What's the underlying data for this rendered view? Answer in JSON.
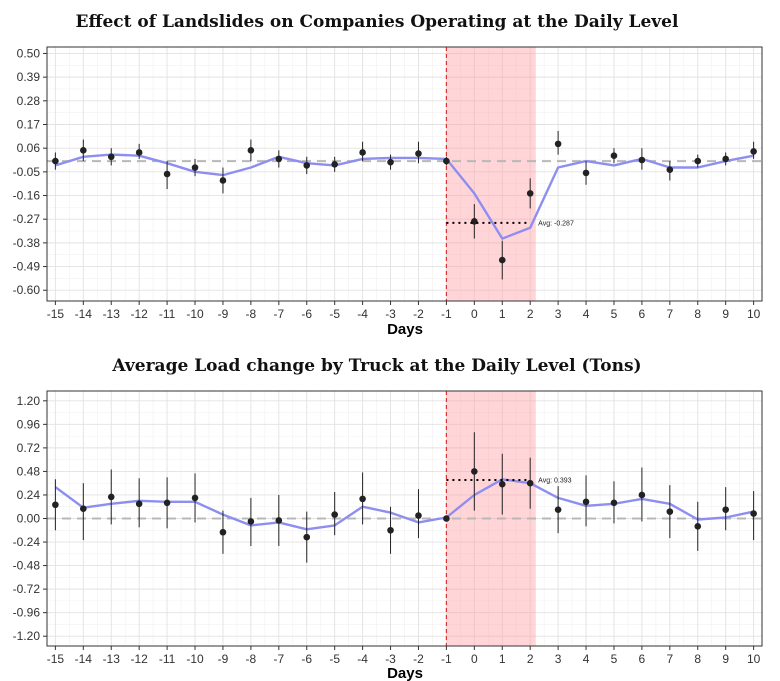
{
  "chart_data": [
    {
      "type": "line",
      "title": "Effect of Landslides on Companies Operating at the Daily Level",
      "xlabel": "Days",
      "ylabel": "",
      "x": [
        -15,
        -14,
        -13,
        -12,
        -11,
        -10,
        -9,
        -8,
        -7,
        -6,
        -5,
        -4,
        -3,
        -2,
        -1,
        0,
        1,
        2,
        3,
        4,
        5,
        6,
        7,
        8,
        9,
        10
      ],
      "xlim": [
        -15.3,
        10.3
      ],
      "ylim": [
        -0.65,
        0.53
      ],
      "yticks": [
        0.5,
        0.39,
        0.28,
        0.17,
        0.06,
        -0.05,
        -0.16,
        -0.27,
        -0.38,
        -0.49,
        -0.6
      ],
      "ytick_labels": [
        "0.50",
        "0.39",
        "0.28",
        "0.17",
        "0.06",
        "-0.05",
        "-0.16",
        "-0.27",
        "-0.38",
        "-0.49",
        "-0.60"
      ],
      "grid": true,
      "baseline": 0.0,
      "shaded_region": [
        -1,
        2.2
      ],
      "event_line_x": -1,
      "annotation": {
        "text": "Avg: -0.287",
        "x_from": -1,
        "x_to": 2,
        "y": -0.287
      },
      "series": [
        {
          "kind": "points_with_error_bars",
          "values": [
            0.0,
            0.05,
            0.02,
            0.04,
            -0.06,
            -0.03,
            -0.09,
            0.05,
            0.01,
            -0.02,
            -0.015,
            0.04,
            -0.005,
            0.035,
            0.0,
            -0.28,
            -0.46,
            -0.15,
            0.08,
            -0.055,
            0.025,
            0.005,
            -0.04,
            0.0,
            0.01,
            0.045
          ],
          "lower": [
            -0.04,
            0.0,
            -0.02,
            0.01,
            -0.13,
            -0.07,
            -0.15,
            0.0,
            -0.03,
            -0.06,
            -0.05,
            0.0,
            -0.04,
            -0.01,
            -0.02,
            -0.36,
            -0.55,
            -0.22,
            0.03,
            -0.11,
            -0.01,
            -0.04,
            -0.09,
            -0.03,
            -0.02,
            0.01
          ],
          "upper": [
            0.04,
            0.1,
            0.06,
            0.08,
            0.0,
            0.01,
            -0.03,
            0.1,
            0.05,
            0.02,
            0.02,
            0.09,
            0.03,
            0.09,
            0.02,
            -0.2,
            -0.37,
            -0.08,
            0.14,
            0.0,
            0.06,
            0.06,
            0.0,
            0.03,
            0.04,
            0.09
          ]
        },
        {
          "kind": "smooth_line",
          "color": "#8e8ef0",
          "values": [
            -0.02,
            0.02,
            0.03,
            0.025,
            -0.01,
            -0.05,
            -0.065,
            -0.03,
            0.02,
            -0.01,
            -0.02,
            0.01,
            0.015,
            0.015,
            0.01,
            -0.15,
            -0.36,
            -0.31,
            -0.03,
            0.0,
            -0.02,
            0.01,
            -0.03,
            -0.03,
            0.0,
            0.025
          ]
        }
      ]
    },
    {
      "type": "line",
      "title": "Average Load change by Truck at the Daily Level (Tons)",
      "xlabel": "Days",
      "ylabel": "",
      "x": [
        -15,
        -14,
        -13,
        -12,
        -11,
        -10,
        -9,
        -8,
        -7,
        -6,
        -5,
        -4,
        -3,
        -2,
        -1,
        0,
        1,
        2,
        3,
        4,
        5,
        6,
        7,
        8,
        9,
        10
      ],
      "xlim": [
        -15.3,
        10.3
      ],
      "ylim": [
        -1.3,
        1.3
      ],
      "yticks": [
        1.2,
        0.96,
        0.72,
        0.48,
        0.24,
        0.0,
        -0.24,
        -0.48,
        -0.72,
        -0.96,
        -1.2
      ],
      "ytick_labels": [
        "1.20",
        "0.96",
        "0.72",
        "0.48",
        "0.24",
        "0.00",
        "-0.24",
        "-0.48",
        "-0.72",
        "-0.96",
        "-1.20"
      ],
      "grid": true,
      "baseline": 0.0,
      "shaded_region": [
        -1,
        2.2
      ],
      "event_line_x": -1,
      "annotation": {
        "text": "Avg: 0.393",
        "x_from": -1,
        "x_to": 2,
        "y": 0.393
      },
      "series": [
        {
          "kind": "points_with_error_bars",
          "values": [
            0.14,
            0.1,
            0.22,
            0.15,
            0.16,
            0.21,
            -0.14,
            -0.03,
            -0.02,
            -0.19,
            0.04,
            0.2,
            -0.12,
            0.03,
            0.0,
            0.48,
            0.35,
            0.36,
            0.09,
            0.17,
            0.16,
            0.24,
            0.07,
            -0.08,
            0.09,
            0.05
          ],
          "lower": [
            -0.12,
            -0.22,
            -0.06,
            -0.09,
            -0.1,
            -0.04,
            -0.36,
            -0.28,
            -0.28,
            -0.45,
            -0.17,
            -0.06,
            -0.36,
            -0.2,
            -0.02,
            0.08,
            0.04,
            0.1,
            -0.15,
            -0.08,
            -0.05,
            -0.03,
            -0.2,
            -0.33,
            -0.12,
            -0.22
          ],
          "upper": [
            0.4,
            0.36,
            0.5,
            0.41,
            0.42,
            0.46,
            0.08,
            0.21,
            0.24,
            0.07,
            0.27,
            0.47,
            0.12,
            0.3,
            0.02,
            0.88,
            0.66,
            0.62,
            0.33,
            0.44,
            0.38,
            0.52,
            0.34,
            0.17,
            0.32,
            0.28
          ]
        },
        {
          "kind": "smooth_line",
          "color": "#8e8ef0",
          "values": [
            0.32,
            0.11,
            0.15,
            0.18,
            0.17,
            0.17,
            0.04,
            -0.07,
            -0.04,
            -0.11,
            -0.07,
            0.12,
            0.06,
            -0.04,
            0.01,
            0.24,
            0.4,
            0.36,
            0.21,
            0.13,
            0.15,
            0.2,
            0.15,
            -0.01,
            0.01,
            0.07
          ]
        }
      ]
    }
  ]
}
